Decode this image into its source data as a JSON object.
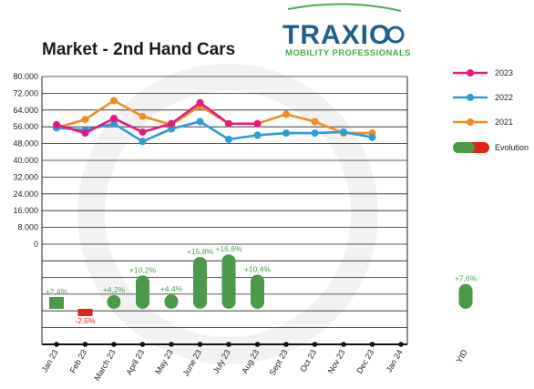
{
  "title": "Market - 2nd Hand Cars",
  "logo": {
    "word": "TRAXIO",
    "tagline": "MOBILITY PROFESSIONALS"
  },
  "chart_data": {
    "type": "line",
    "title": "Market - 2nd Hand Cars",
    "categories": [
      "Jan 23",
      "Feb 23",
      "March 23",
      "April 23",
      "May 23",
      "June 23",
      "July 23",
      "Aug 23",
      "Sept 23",
      "Oct 23",
      "Nov 23",
      "Dec 23",
      "Jan 24"
    ],
    "yticks": [
      "80.000",
      "72.000",
      "64.000",
      "56.000",
      "48.000",
      "40.000",
      "32.000",
      "24.000",
      "16.000",
      "8.000",
      "0"
    ],
    "ylim": [
      0,
      80000
    ],
    "grid": true,
    "legend_position": "right",
    "series": [
      {
        "name": "2023",
        "color": "#e6197e",
        "values": [
          57000,
          53000,
          60000,
          53500,
          57500,
          67500,
          57500,
          57500,
          null,
          null,
          null,
          null,
          null
        ]
      },
      {
        "name": "2022",
        "color": "#2f9bd6",
        "values": [
          55500,
          54500,
          57500,
          49000,
          55000,
          58500,
          50000,
          52000,
          53000,
          53000,
          53500,
          51000,
          null
        ]
      },
      {
        "name": "2021",
        "color": "#f08c22",
        "values": [
          55500,
          59500,
          68500,
          61000,
          57000,
          66000,
          57500,
          57500,
          62000,
          58500,
          53000,
          53000,
          null
        ]
      }
    ],
    "evolution": {
      "legend_label": "Evolution",
      "positive_color": "#4a9a4a",
      "negative_color": "#e2231a",
      "monthly": [
        {
          "category": "Jan 23",
          "label": "+2,4%",
          "value": 2.4
        },
        {
          "category": "Feb 23",
          "label": "-2,5%",
          "value": -2.5
        },
        {
          "category": "March 23",
          "label": "+4,2%",
          "value": 4.2
        },
        {
          "category": "April 23",
          "label": "+10,2%",
          "value": 10.2
        },
        {
          "category": "May 23",
          "label": "+4,4%",
          "value": 4.4
        },
        {
          "category": "June 23",
          "label": "+15,8%",
          "value": 15.8
        },
        {
          "category": "July 23",
          "label": "+16,6%",
          "value": 16.6
        },
        {
          "category": "Aug 23",
          "label": "+10,4%",
          "value": 10.4
        }
      ],
      "ytd": {
        "category": "YtD",
        "label": "+7,6%",
        "value": 7.6
      }
    }
  }
}
